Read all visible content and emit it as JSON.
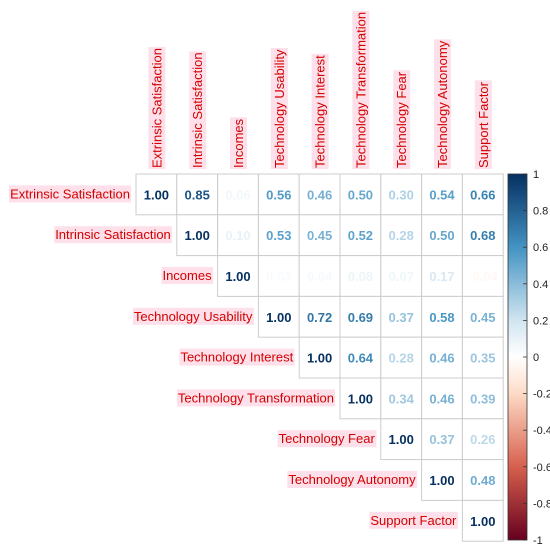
{
  "chart_data": {
    "type": "heatmap",
    "variables": [
      "Extrinsic Satisfaction",
      "Intrinsic Satisfaction",
      "Incomes",
      "Technology Usability",
      "Technology Interest",
      "Technology Transformation",
      "Technology Fear",
      "Technology Autonomy",
      "Support Factor"
    ],
    "matrix": [
      [
        "1.00",
        "0.85",
        "0.06",
        "0.56",
        "0.46",
        "0.50",
        "0.30",
        "0.54",
        "0.66"
      ],
      [
        null,
        "1.00",
        "0.10",
        "0.53",
        "0.45",
        "0.52",
        "0.28",
        "0.50",
        "0.68"
      ],
      [
        null,
        null,
        "1.00",
        "0.03",
        "0.04",
        "0.08",
        "0.07",
        "0.17",
        "-0.04"
      ],
      [
        null,
        null,
        null,
        "1.00",
        "0.72",
        "0.69",
        "0.37",
        "0.58",
        "0.45"
      ],
      [
        null,
        null,
        null,
        null,
        "1.00",
        "0.64",
        "0.28",
        "0.46",
        "0.35"
      ],
      [
        null,
        null,
        null,
        null,
        null,
        "1.00",
        "0.34",
        "0.46",
        "0.39"
      ],
      [
        null,
        null,
        null,
        null,
        null,
        null,
        "1.00",
        "0.37",
        "0.26"
      ],
      [
        null,
        null,
        null,
        null,
        null,
        null,
        null,
        "1.00",
        "0.48"
      ],
      [
        null,
        null,
        null,
        null,
        null,
        null,
        null,
        null,
        "1.00"
      ]
    ],
    "colorbar": {
      "range": [
        -1,
        1
      ],
      "ticks": [
        "1",
        "0.8",
        "0.6",
        "0.4",
        "0.2",
        "0",
        "-0.2",
        "-0.4",
        "-0.6",
        "-0.8",
        "-1"
      ],
      "colors": {
        "neg_strong": "#67001f",
        "neg_mid": "#d6604d",
        "neg_light": "#fddbc7",
        "zero": "#ffffff",
        "pos_light": "#d1e5f0",
        "pos_mid": "#4393c3",
        "pos_strong": "#053061"
      }
    },
    "label_color": "#d40000",
    "label_highlight": "#fde0ea",
    "grid_color": "#cccccc"
  }
}
